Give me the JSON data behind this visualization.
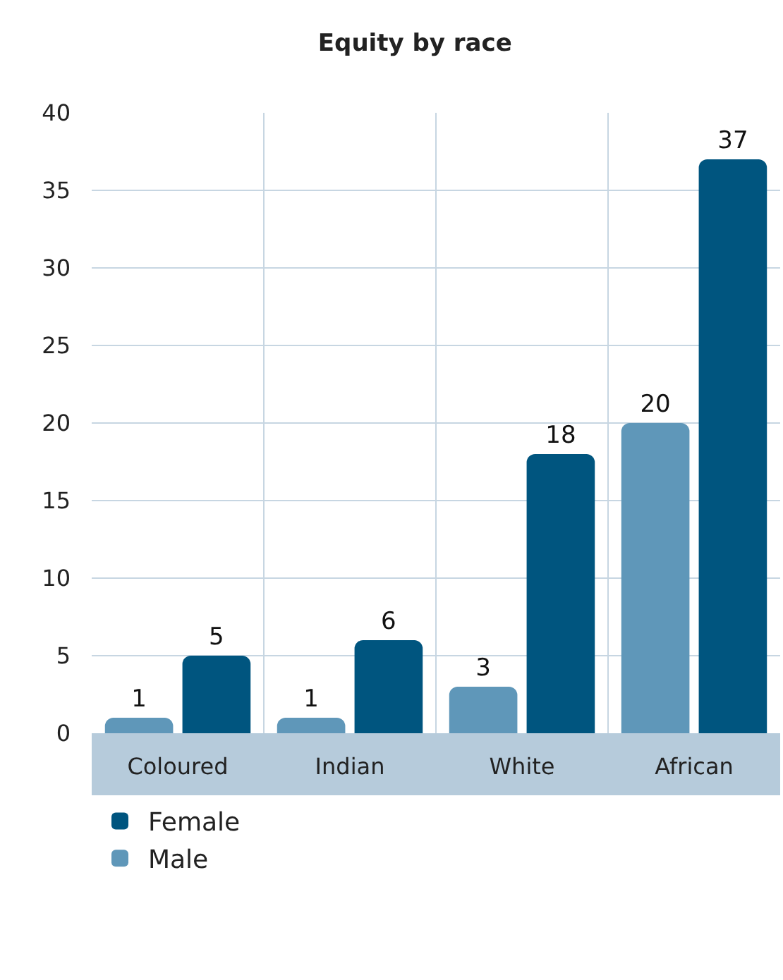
{
  "chart_data": {
    "type": "bar",
    "title": "Equity by race",
    "categories": [
      "Coloured",
      "Indian",
      "White",
      "African"
    ],
    "series": [
      {
        "name": "Male",
        "color": "#5f97b9",
        "values": [
          1,
          1,
          3,
          20
        ]
      },
      {
        "name": "Female",
        "color": "#00557f",
        "values": [
          5,
          6,
          18,
          37
        ]
      }
    ],
    "ylim": [
      0,
      40
    ],
    "yticks": [
      0,
      5,
      10,
      15,
      20,
      25,
      30,
      35,
      40
    ],
    "grid": true,
    "legend": "bottom",
    "data_labels": true
  }
}
